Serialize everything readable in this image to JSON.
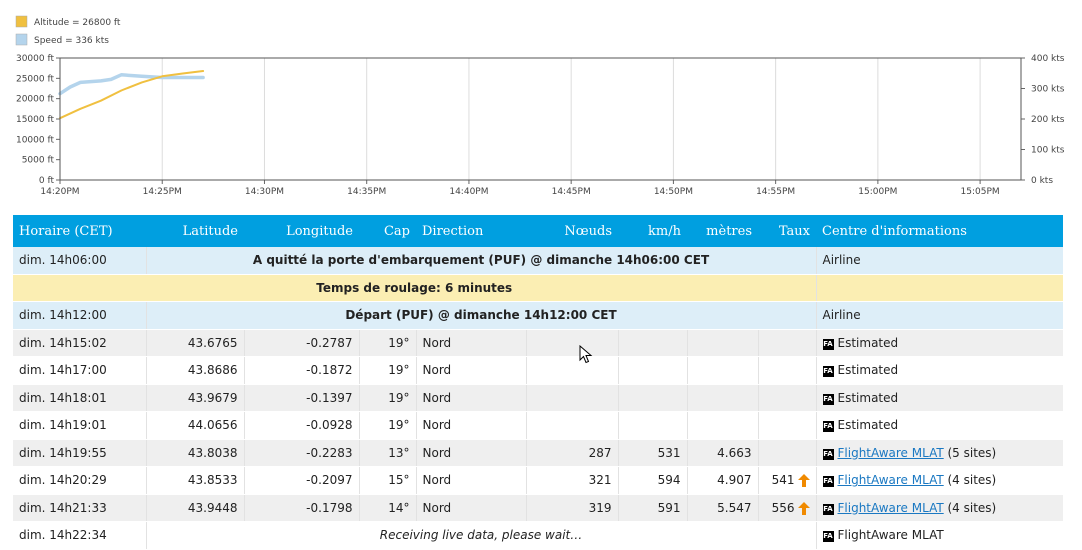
{
  "chart_data": {
    "type": "line",
    "legend": [
      {
        "label": "Altitude = 26800 ft",
        "color": "#f0c040"
      },
      {
        "label": "Speed = 336 kts",
        "color": "#b4d4ec"
      }
    ],
    "x_ticks": [
      "14:20PM",
      "14:25PM",
      "14:30PM",
      "14:35PM",
      "14:40PM",
      "14:45PM",
      "14:50PM",
      "14:55PM",
      "15:00PM",
      "15:05PM"
    ],
    "y_left_ticks": [
      "0 ft",
      "5000 ft",
      "10000 ft",
      "15000 ft",
      "20000 ft",
      "25000 ft",
      "30000 ft"
    ],
    "y_right_ticks": [
      "0 kts",
      "100 kts",
      "200 kts",
      "300 kts",
      "400 kts"
    ],
    "ylim_left": [
      0,
      30000
    ],
    "ylim_right": [
      0,
      400
    ],
    "xlim_minutes": [
      0,
      47
    ],
    "series": [
      {
        "name": "Altitude",
        "axis": "left",
        "color": "#f0c040",
        "x": [
          0,
          1,
          2,
          3,
          4,
          5,
          6,
          7
        ],
        "y": [
          15200,
          17500,
          19500,
          22000,
          24000,
          25500,
          26200,
          26800
        ]
      },
      {
        "name": "Speed",
        "axis": "right",
        "color": "#b4d4ec",
        "x": [
          0,
          0.5,
          1,
          2,
          2.5,
          3,
          4,
          5,
          6,
          7
        ],
        "y": [
          283,
          305,
          320,
          325,
          330,
          345,
          340,
          336,
          336,
          336
        ]
      }
    ]
  },
  "table": {
    "headers": [
      "Horaire (CET)",
      "Latitude",
      "Longitude",
      "Cap",
      "Direction",
      "Nœuds",
      "km/h",
      "mètres",
      "Taux",
      "Centre d'informations"
    ],
    "rows": [
      {
        "kind": "event",
        "time": "dim. 14h06:00",
        "event": "A quitté la porte d'embarquement (PUF) @ dimanche 14h06:00 CET",
        "source": "Airline"
      },
      {
        "kind": "taxi",
        "event": "Temps de roulage: 6 minutes"
      },
      {
        "kind": "event",
        "time": "dim. 14h12:00",
        "event": "Départ (PUF) @ dimanche 14h12:00 CET",
        "source": "Airline"
      },
      {
        "kind": "data",
        "time": "dim. 14h15:02",
        "lat": "43.6765",
        "lon": "-0.2787",
        "cap": "19°",
        "dir": "Nord",
        "knots": "",
        "kmh": "",
        "meters": "",
        "rate": "",
        "source": "Estimated",
        "link": false
      },
      {
        "kind": "data",
        "time": "dim. 14h17:00",
        "lat": "43.8686",
        "lon": "-0.1872",
        "cap": "19°",
        "dir": "Nord",
        "knots": "",
        "kmh": "",
        "meters": "",
        "rate": "",
        "source": "Estimated",
        "link": false
      },
      {
        "kind": "data",
        "time": "dim. 14h18:01",
        "lat": "43.9679",
        "lon": "-0.1397",
        "cap": "19°",
        "dir": "Nord",
        "knots": "",
        "kmh": "",
        "meters": "",
        "rate": "",
        "source": "Estimated",
        "link": false
      },
      {
        "kind": "data",
        "time": "dim. 14h19:01",
        "lat": "44.0656",
        "lon": "-0.0928",
        "cap": "19°",
        "dir": "Nord",
        "knots": "",
        "kmh": "",
        "meters": "",
        "rate": "",
        "source": "Estimated",
        "link": false
      },
      {
        "kind": "data",
        "time": "dim. 14h19:55",
        "lat": "43.8038",
        "lon": "-0.2283",
        "cap": "13°",
        "dir": "Nord",
        "knots": "287",
        "kmh": "531",
        "meters": "4.663",
        "rate": "",
        "source": "FlightAware MLAT",
        "sites": " (5 sites)",
        "link": true
      },
      {
        "kind": "data",
        "time": "dim. 14h20:29",
        "lat": "43.8533",
        "lon": "-0.2097",
        "cap": "15°",
        "dir": "Nord",
        "knots": "321",
        "kmh": "594",
        "meters": "4.907",
        "rate": "541",
        "arrow": true,
        "source": "FlightAware MLAT",
        "sites": " (4 sites)",
        "link": true
      },
      {
        "kind": "data",
        "time": "dim. 14h21:33",
        "lat": "43.9448",
        "lon": "-0.1798",
        "cap": "14°",
        "dir": "Nord",
        "knots": "319",
        "kmh": "591",
        "meters": "5.547",
        "rate": "556",
        "arrow": true,
        "source": "FlightAware MLAT",
        "sites": " (4 sites)",
        "link": true
      },
      {
        "kind": "live",
        "time": "dim. 14h22:34",
        "event": "Receiving live data, please wait…",
        "source": "FlightAware MLAT"
      }
    ]
  },
  "icons": {
    "fa_badge": "FA",
    "arrow_color": "#f08a00"
  }
}
